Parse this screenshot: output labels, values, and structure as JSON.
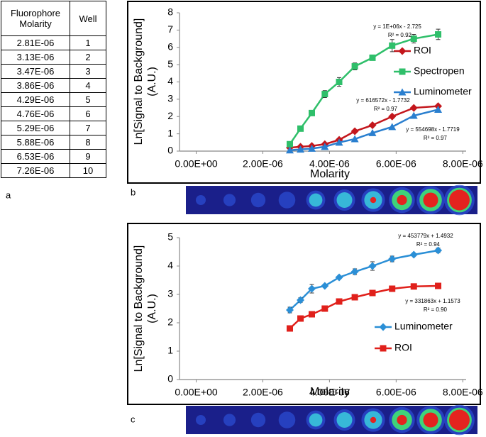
{
  "table": {
    "header": [
      "Fluorophore Molarity",
      "Well"
    ],
    "rows": [
      [
        "2.81E-06",
        "1"
      ],
      [
        "3.13E-06",
        "2"
      ],
      [
        "3.47E-06",
        "3"
      ],
      [
        "3.86E-06",
        "4"
      ],
      [
        "4.29E-06",
        "5"
      ],
      [
        "4.76E-06",
        "6"
      ],
      [
        "5.29E-06",
        "7"
      ],
      [
        "5.88E-06",
        "8"
      ],
      [
        "6.53E-06",
        "9"
      ],
      [
        "7.26E-06",
        "10"
      ]
    ]
  },
  "panel_labels": [
    "a",
    "b",
    "c"
  ],
  "chart_data": [
    {
      "type": "line",
      "xlabel": "Molarity",
      "ylabel": "Ln[Signal to Background] (A.U.)",
      "xlim": [
        -5e-07,
        8.1e-06
      ],
      "xticks": [
        {
          "value": 0,
          "label": "0.00E+00"
        },
        {
          "value": 2e-06,
          "label": "2.00E-06"
        },
        {
          "value": 4e-06,
          "label": "4.00E-06"
        },
        {
          "value": 6e-06,
          "label": "6.00E-06"
        },
        {
          "value": 8e-06,
          "label": "8.00E-06"
        }
      ],
      "ylim": [
        0,
        8
      ],
      "yticks": [
        0,
        1,
        2,
        3,
        4,
        5,
        6,
        7,
        8
      ],
      "legend": "right",
      "x": [
        2.81e-06,
        3.13e-06,
        3.47e-06,
        3.86e-06,
        4.29e-06,
        4.76e-06,
        5.29e-06,
        5.88e-06,
        6.53e-06,
        7.26e-06
      ],
      "series": [
        {
          "name": "ROI",
          "color": "#c3161c",
          "marker": "diamond",
          "values": [
            0.2,
            0.25,
            0.3,
            0.4,
            0.65,
            1.15,
            1.5,
            2.0,
            2.5,
            2.6
          ]
        },
        {
          "name": "Spectropen",
          "color": "#2fbf6a",
          "marker": "square",
          "values": [
            0.4,
            1.3,
            2.2,
            3.3,
            4.0,
            4.9,
            5.4,
            6.1,
            6.5,
            6.75
          ],
          "errors": [
            0.05,
            0.1,
            0.1,
            0.2,
            0.25,
            0.2,
            0.15,
            0.35,
            0.25,
            0.3
          ]
        },
        {
          "name": "Luminometer",
          "color": "#2a7fcf",
          "marker": "triangle",
          "values": [
            0.05,
            0.1,
            0.15,
            0.25,
            0.5,
            0.7,
            1.05,
            1.4,
            2.05,
            2.4
          ]
        }
      ],
      "annotations": [
        "y = 1E+06x - 2.725",
        "R² = 0.92",
        "y = 616572x - 1.7732",
        "R² = 0.97",
        "y = 554698x - 1.7719",
        "R² = 0.97"
      ]
    },
    {
      "type": "line",
      "xlabel": "Molarity",
      "ylabel": "Ln[Signal to Background] (A.U.)",
      "xlim": [
        -5e-07,
        8.1e-06
      ],
      "xticks": [
        {
          "value": 0,
          "label": "0.00E+00"
        },
        {
          "value": 2e-06,
          "label": "2.00E-06"
        },
        {
          "value": 4e-06,
          "label": "4.00E-06"
        },
        {
          "value": 6e-06,
          "label": "6.00E-06"
        },
        {
          "value": 8e-06,
          "label": "8.00E-06"
        }
      ],
      "ylim": [
        0,
        5
      ],
      "yticks": [
        0,
        1,
        2,
        3,
        4,
        5
      ],
      "legend": "right",
      "x": [
        2.81e-06,
        3.13e-06,
        3.47e-06,
        3.86e-06,
        4.29e-06,
        4.76e-06,
        5.29e-06,
        5.88e-06,
        6.53e-06,
        7.26e-06
      ],
      "series": [
        {
          "name": "Luminometer",
          "color": "#2b8fd6",
          "marker": "diamond",
          "values": [
            2.45,
            2.8,
            3.2,
            3.3,
            3.6,
            3.8,
            4.0,
            4.25,
            4.4,
            4.55
          ],
          "errors": [
            0.1,
            0.08,
            0.15,
            0.05,
            0.05,
            0.1,
            0.15,
            0.1,
            0.05,
            0.08
          ]
        },
        {
          "name": "ROI",
          "color": "#e0201b",
          "marker": "square",
          "values": [
            1.8,
            2.15,
            2.3,
            2.5,
            2.75,
            2.9,
            3.05,
            3.2,
            3.28,
            3.3
          ],
          "errors": [
            0.05,
            0.05,
            0.05,
            0.05,
            0.1,
            0.05,
            0.05,
            0.05,
            0.05,
            0.05
          ]
        }
      ],
      "annotations": [
        "y = 453779x + 1.4932",
        "R² = 0.94",
        "y = 331863x + 1.1573",
        "R² = 0.90"
      ]
    }
  ]
}
